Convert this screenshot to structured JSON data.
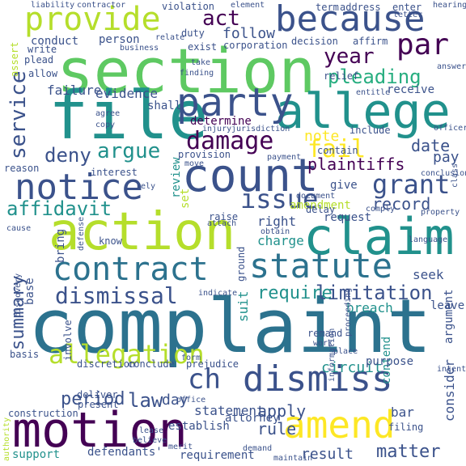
{
  "palette": {
    "purple": "#440154",
    "indigo": "#3b528b",
    "teal": "#21918c",
    "blue": "#2c728e",
    "green": "#5ec962",
    "lime": "#b5de2b",
    "yellow": "#fde725",
    "sea": "#28ae80"
  },
  "words": [
    {
      "text": "complaint",
      "color": "blue"
    },
    {
      "text": "section",
      "color": "green"
    },
    {
      "text": "because",
      "color": "indigo"
    },
    {
      "text": "provide",
      "color": "lime"
    },
    {
      "text": "file",
      "color": "teal"
    },
    {
      "text": "allege",
      "color": "teal"
    },
    {
      "text": "party",
      "color": "indigo"
    },
    {
      "text": "par",
      "color": "purple"
    },
    {
      "text": "count",
      "color": "indigo"
    },
    {
      "text": "notice",
      "color": "indigo"
    },
    {
      "text": "action",
      "color": "lime"
    },
    {
      "text": "claim",
      "color": "teal"
    },
    {
      "text": "contract",
      "color": "blue"
    },
    {
      "text": "statute",
      "color": "blue"
    },
    {
      "text": "dismiss",
      "color": "indigo"
    },
    {
      "text": "motion",
      "color": "purple"
    },
    {
      "text": "amend",
      "color": "yellow"
    },
    {
      "text": "allegation",
      "color": "lime"
    },
    {
      "text": "dismissal",
      "color": "indigo"
    },
    {
      "text": "summary",
      "color": "indigo"
    },
    {
      "text": "affidavit",
      "color": "teal"
    },
    {
      "text": "grant",
      "color": "indigo"
    },
    {
      "text": "damage",
      "color": "purple"
    },
    {
      "text": "fail",
      "color": "yellow"
    },
    {
      "text": "argue",
      "color": "teal"
    },
    {
      "text": "deny",
      "color": "indigo"
    },
    {
      "text": "issue",
      "color": "indigo"
    },
    {
      "text": "service",
      "color": "indigo"
    },
    {
      "text": "pleading",
      "color": "sea"
    },
    {
      "text": "year",
      "color": "purple"
    },
    {
      "text": "act",
      "color": "purple"
    },
    {
      "text": "follow",
      "color": "indigo"
    },
    {
      "text": "record",
      "color": "indigo"
    },
    {
      "text": "limitation",
      "color": "indigo"
    },
    {
      "text": "require",
      "color": "teal"
    },
    {
      "text": "period",
      "color": "indigo"
    },
    {
      "text": "ch",
      "color": "indigo"
    },
    {
      "text": "law",
      "color": "indigo"
    },
    {
      "text": "day",
      "color": "indigo"
    },
    {
      "text": "apply",
      "color": "indigo"
    },
    {
      "text": "rule",
      "color": "indigo"
    },
    {
      "text": "result",
      "color": "indigo"
    },
    {
      "text": "matter",
      "color": "indigo"
    },
    {
      "text": "plaintiffs",
      "color": "purple"
    },
    {
      "text": "date",
      "color": "indigo"
    },
    {
      "text": "pay",
      "color": "indigo"
    },
    {
      "text": "note",
      "color": "yellow"
    },
    {
      "text": "evidence",
      "color": "indigo"
    },
    {
      "text": "failure",
      "color": "indigo"
    },
    {
      "text": "determine",
      "color": "purple"
    },
    {
      "text": "conduct",
      "color": "indigo"
    },
    {
      "text": "person",
      "color": "indigo"
    },
    {
      "text": "charge",
      "color": "teal"
    },
    {
      "text": "breach",
      "color": "teal"
    },
    {
      "text": "circuit",
      "color": "teal"
    },
    {
      "text": "amendment",
      "color": "lime"
    },
    {
      "text": "right",
      "color": "indigo"
    },
    {
      "text": "seek",
      "color": "indigo"
    },
    {
      "text": "statement",
      "color": "indigo"
    },
    {
      "text": "establish",
      "color": "indigo"
    },
    {
      "text": "attorney",
      "color": "indigo"
    },
    {
      "text": "requirement",
      "color": "indigo"
    },
    {
      "text": "review",
      "color": "teal"
    },
    {
      "text": "receive",
      "color": "indigo"
    },
    {
      "text": "suit",
      "color": "teal"
    },
    {
      "text": "base",
      "color": "indigo"
    },
    {
      "text": "bring",
      "color": "indigo"
    },
    {
      "text": "contend",
      "color": "teal"
    },
    {
      "text": "consider",
      "color": "indigo"
    },
    {
      "text": "argument",
      "color": "indigo"
    },
    {
      "text": "reason",
      "color": "indigo"
    },
    {
      "text": "request",
      "color": "indigo"
    },
    {
      "text": "decision",
      "color": "indigo"
    },
    {
      "text": "affirm",
      "color": "indigo"
    },
    {
      "text": "provision",
      "color": "indigo"
    },
    {
      "text": "interest",
      "color": "indigo"
    },
    {
      "text": "remand",
      "color": "indigo"
    },
    {
      "text": "leave",
      "color": "indigo"
    },
    {
      "text": "purpose",
      "color": "indigo"
    },
    {
      "text": "prejudice",
      "color": "indigo"
    },
    {
      "text": "support",
      "color": "teal"
    },
    {
      "text": "defendants'",
      "color": "indigo"
    },
    {
      "text": "bar",
      "color": "indigo"
    },
    {
      "text": "plead",
      "color": "indigo"
    },
    {
      "text": "write",
      "color": "indigo"
    },
    {
      "text": "allow",
      "color": "indigo"
    },
    {
      "text": "term",
      "color": "indigo"
    },
    {
      "text": "address",
      "color": "indigo"
    },
    {
      "text": "enter",
      "color": "indigo"
    },
    {
      "text": "include",
      "color": "indigo"
    },
    {
      "text": "contain",
      "color": "indigo"
    },
    {
      "text": "give",
      "color": "indigo"
    },
    {
      "text": "set",
      "color": "lime"
    },
    {
      "text": "shall",
      "color": "indigo"
    },
    {
      "text": "relief",
      "color": "indigo"
    },
    {
      "text": "duty",
      "color": "indigo"
    },
    {
      "text": "exist",
      "color": "indigo"
    },
    {
      "text": "corporation",
      "color": "indigo"
    },
    {
      "text": "violation",
      "color": "indigo"
    },
    {
      "text": "element",
      "color": "indigo"
    },
    {
      "text": "liability",
      "color": "indigo"
    },
    {
      "text": "contractor",
      "color": "indigo"
    },
    {
      "text": "injury",
      "color": "indigo"
    },
    {
      "text": "jurisdiction",
      "color": "indigo"
    },
    {
      "text": "deliver",
      "color": "indigo"
    },
    {
      "text": "present",
      "color": "indigo"
    },
    {
      "text": "construction",
      "color": "indigo"
    },
    {
      "text": "discretion",
      "color": "indigo"
    },
    {
      "text": "conclude",
      "color": "indigo"
    },
    {
      "text": "involve",
      "color": "indigo"
    },
    {
      "text": "ground",
      "color": "indigo"
    },
    {
      "text": "know",
      "color": "indigo"
    },
    {
      "text": "raise",
      "color": "indigo"
    },
    {
      "text": "delay",
      "color": "indigo"
    },
    {
      "text": "document",
      "color": "indigo"
    },
    {
      "text": "payment",
      "color": "indigo"
    },
    {
      "text": "basis",
      "color": "indigo"
    },
    {
      "text": "form",
      "color": "indigo"
    },
    {
      "text": "work",
      "color": "indigo"
    },
    {
      "text": "place",
      "color": "indigo"
    },
    {
      "text": "filing",
      "color": "indigo"
    },
    {
      "text": "office",
      "color": "indigo"
    },
    {
      "text": "business",
      "color": "indigo"
    },
    {
      "text": "agree",
      "color": "indigo"
    },
    {
      "text": "rely",
      "color": "indigo"
    },
    {
      "text": "cause",
      "color": "indigo"
    },
    {
      "text": "assert",
      "color": "lime"
    },
    {
      "text": "answer",
      "color": "indigo"
    },
    {
      "text": "hearing",
      "color": "indigo"
    },
    {
      "text": "indicate",
      "color": "indigo"
    },
    {
      "text": "authority",
      "color": "lime"
    },
    {
      "text": "entitle",
      "color": "indigo"
    },
    {
      "text": "move",
      "color": "indigo"
    },
    {
      "text": "attach",
      "color": "indigo"
    },
    {
      "text": "comply",
      "color": "indigo"
    },
    {
      "text": "obtain",
      "color": "indigo"
    },
    {
      "text": "language",
      "color": "indigo"
    },
    {
      "text": "defense",
      "color": "indigo"
    },
    {
      "text": "discovery",
      "color": "indigo"
    },
    {
      "text": "proceeding",
      "color": "indigo"
    },
    {
      "text": "property",
      "color": "indigo"
    },
    {
      "text": "information",
      "color": "indigo"
    },
    {
      "text": "lease",
      "color": "indigo"
    },
    {
      "text": "believe",
      "color": "indigo"
    },
    {
      "text": "merit",
      "color": "indigo"
    },
    {
      "text": "demand",
      "color": "indigo"
    },
    {
      "text": "maintain",
      "color": "indigo"
    },
    {
      "text": "take",
      "color": "indigo"
    },
    {
      "text": "officer",
      "color": "indigo"
    },
    {
      "text": "copy",
      "color": "indigo"
    },
    {
      "text": "class",
      "color": "indigo"
    },
    {
      "text": "conclusion",
      "color": "indigo"
    },
    {
      "text": "finding",
      "color": "indigo"
    },
    {
      "text": "relate",
      "color": "indigo"
    },
    {
      "text": "intent",
      "color": "indigo"
    },
    {
      "text": "letter",
      "color": "indigo"
    }
  ]
}
